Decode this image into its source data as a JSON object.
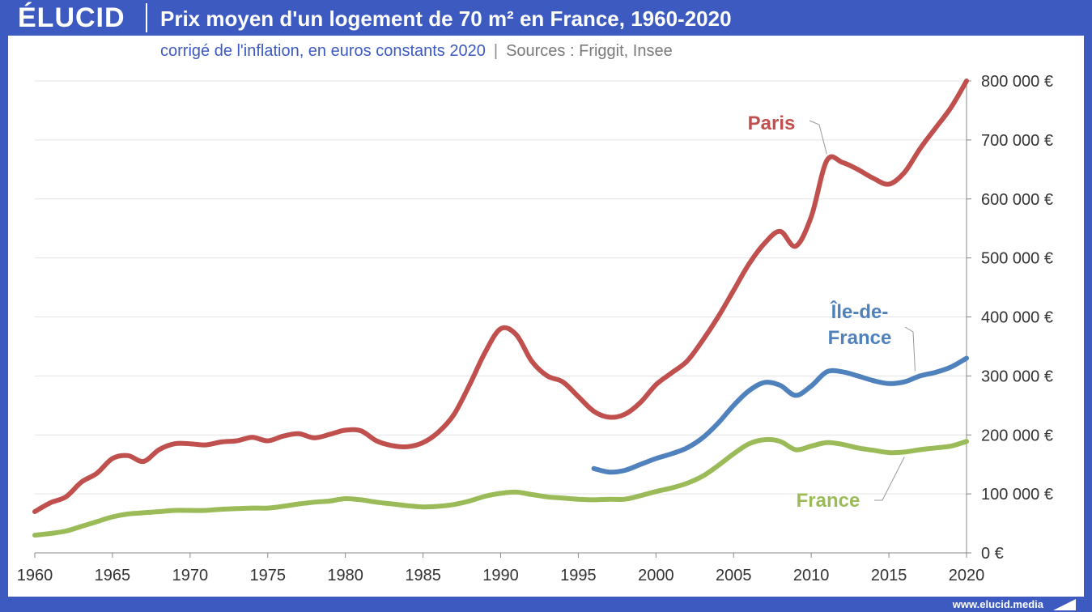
{
  "header": {
    "logo": "ÉLUCID",
    "title": "Prix moyen d'un logement de 70 m² en France, 1960-2020"
  },
  "subtitle": {
    "main": "corrigé de l'inflation, en euros constants 2020",
    "separator": "|",
    "sources": "Sources : Friggit, Insee"
  },
  "footer": {
    "url": "www.elucid.media"
  },
  "colors": {
    "brand": "#3d5ac0",
    "paris": "#c0504d",
    "idf": "#4f81bd",
    "france": "#9bbb59"
  },
  "chart_data": {
    "type": "line",
    "title": "Prix moyen d'un logement de 70 m² en France, 1960-2020",
    "subtitle": "corrigé de l'inflation, en euros constants 2020",
    "xlabel": "",
    "ylabel": "",
    "xlim": [
      1960,
      2020
    ],
    "ylim": [
      0,
      800000
    ],
    "x_ticks": [
      "1960",
      "1965",
      "1970",
      "1975",
      "1980",
      "1985",
      "1990",
      "1995",
      "2000",
      "2005",
      "2010",
      "2015",
      "2020"
    ],
    "y_ticks": [
      "0 €",
      "100 000 €",
      "200 000 €",
      "300 000 €",
      "400 000 €",
      "500 000 €",
      "600 000 €",
      "700 000 €",
      "800 000 €"
    ],
    "y_axis_position": "right",
    "grid": "horizontal",
    "series": [
      {
        "name": "Paris",
        "color": "#c0504d",
        "points": [
          [
            1960,
            70000
          ],
          [
            1961,
            85000
          ],
          [
            1962,
            95000
          ],
          [
            1963,
            120000
          ],
          [
            1964,
            135000
          ],
          [
            1965,
            160000
          ],
          [
            1966,
            165000
          ],
          [
            1967,
            155000
          ],
          [
            1968,
            175000
          ],
          [
            1969,
            185000
          ],
          [
            1970,
            185000
          ],
          [
            1971,
            183000
          ],
          [
            1972,
            188000
          ],
          [
            1973,
            190000
          ],
          [
            1974,
            196000
          ],
          [
            1975,
            190000
          ],
          [
            1976,
            198000
          ],
          [
            1977,
            202000
          ],
          [
            1978,
            195000
          ],
          [
            1979,
            201000
          ],
          [
            1980,
            208000
          ],
          [
            1981,
            207000
          ],
          [
            1982,
            190000
          ],
          [
            1983,
            182000
          ],
          [
            1984,
            180000
          ],
          [
            1985,
            187000
          ],
          [
            1986,
            205000
          ],
          [
            1987,
            235000
          ],
          [
            1988,
            285000
          ],
          [
            1989,
            340000
          ],
          [
            1990,
            380000
          ],
          [
            1991,
            370000
          ],
          [
            1992,
            325000
          ],
          [
            1993,
            300000
          ],
          [
            1994,
            290000
          ],
          [
            1995,
            265000
          ],
          [
            1996,
            240000
          ],
          [
            1997,
            230000
          ],
          [
            1998,
            235000
          ],
          [
            1999,
            255000
          ],
          [
            2000,
            285000
          ],
          [
            2001,
            305000
          ],
          [
            2002,
            325000
          ],
          [
            2003,
            360000
          ],
          [
            2004,
            400000
          ],
          [
            2005,
            445000
          ],
          [
            2006,
            490000
          ],
          [
            2007,
            525000
          ],
          [
            2008,
            545000
          ],
          [
            2009,
            520000
          ],
          [
            2010,
            570000
          ],
          [
            2011,
            665000
          ],
          [
            2012,
            662000
          ],
          [
            2013,
            650000
          ],
          [
            2014,
            635000
          ],
          [
            2015,
            625000
          ],
          [
            2016,
            645000
          ],
          [
            2017,
            685000
          ],
          [
            2018,
            720000
          ],
          [
            2019,
            755000
          ],
          [
            2020,
            800000
          ]
        ]
      },
      {
        "name": "Île-de-France",
        "color": "#4f81bd",
        "points": [
          [
            1996,
            143000
          ],
          [
            1997,
            137000
          ],
          [
            1998,
            140000
          ],
          [
            1999,
            150000
          ],
          [
            2000,
            160000
          ],
          [
            2001,
            168000
          ],
          [
            2002,
            178000
          ],
          [
            2003,
            195000
          ],
          [
            2004,
            220000
          ],
          [
            2005,
            250000
          ],
          [
            2006,
            275000
          ],
          [
            2007,
            289000
          ],
          [
            2008,
            284000
          ],
          [
            2009,
            267000
          ],
          [
            2010,
            283000
          ],
          [
            2011,
            307000
          ],
          [
            2012,
            307000
          ],
          [
            2013,
            300000
          ],
          [
            2014,
            292000
          ],
          [
            2015,
            287000
          ],
          [
            2016,
            290000
          ],
          [
            2017,
            300000
          ],
          [
            2018,
            306000
          ],
          [
            2019,
            315000
          ],
          [
            2020,
            330000
          ]
        ]
      },
      {
        "name": "France",
        "color": "#9bbb59",
        "points": [
          [
            1960,
            30000
          ],
          [
            1961,
            33000
          ],
          [
            1962,
            37000
          ],
          [
            1963,
            45000
          ],
          [
            1964,
            53000
          ],
          [
            1965,
            61000
          ],
          [
            1966,
            66000
          ],
          [
            1967,
            68000
          ],
          [
            1968,
            70000
          ],
          [
            1969,
            72000
          ],
          [
            1970,
            72000
          ],
          [
            1971,
            72000
          ],
          [
            1972,
            74000
          ],
          [
            1973,
            75000
          ],
          [
            1974,
            76000
          ],
          [
            1975,
            76000
          ],
          [
            1976,
            79000
          ],
          [
            1977,
            83000
          ],
          [
            1978,
            86000
          ],
          [
            1979,
            88000
          ],
          [
            1980,
            92000
          ],
          [
            1981,
            90000
          ],
          [
            1982,
            86000
          ],
          [
            1983,
            83000
          ],
          [
            1984,
            80000
          ],
          [
            1985,
            78000
          ],
          [
            1986,
            79000
          ],
          [
            1987,
            82000
          ],
          [
            1988,
            88000
          ],
          [
            1989,
            96000
          ],
          [
            1990,
            101000
          ],
          [
            1991,
            103000
          ],
          [
            1992,
            99000
          ],
          [
            1993,
            95000
          ],
          [
            1994,
            93000
          ],
          [
            1995,
            91000
          ],
          [
            1996,
            90000
          ],
          [
            1997,
            91000
          ],
          [
            1998,
            91000
          ],
          [
            1999,
            97000
          ],
          [
            2000,
            104000
          ],
          [
            2001,
            110000
          ],
          [
            2002,
            118000
          ],
          [
            2003,
            130000
          ],
          [
            2004,
            148000
          ],
          [
            2005,
            168000
          ],
          [
            2006,
            185000
          ],
          [
            2007,
            192000
          ],
          [
            2008,
            189000
          ],
          [
            2009,
            175000
          ],
          [
            2010,
            181000
          ],
          [
            2011,
            187000
          ],
          [
            2012,
            184000
          ],
          [
            2013,
            178000
          ],
          [
            2014,
            174000
          ],
          [
            2015,
            170000
          ],
          [
            2016,
            171000
          ],
          [
            2017,
            175000
          ],
          [
            2018,
            178000
          ],
          [
            2019,
            181000
          ],
          [
            2020,
            189000
          ]
        ]
      }
    ],
    "annotations": [
      {
        "series": "Paris",
        "text": "Paris",
        "at_year": 2011
      },
      {
        "series": "Île-de-France",
        "text_lines": [
          "Île-de-",
          "France"
        ],
        "at_year": 2017
      },
      {
        "series": "France",
        "text": "France",
        "at_year": 2016
      }
    ]
  }
}
